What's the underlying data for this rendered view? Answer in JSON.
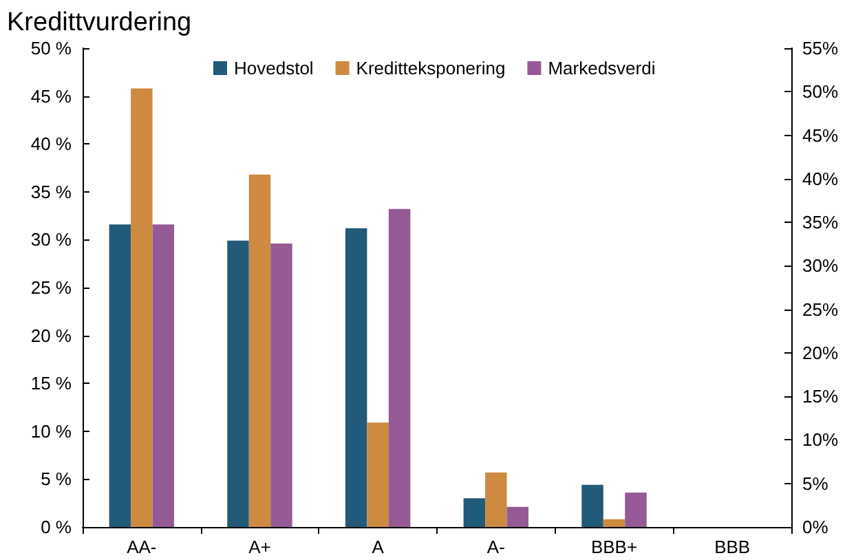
{
  "chart_data": {
    "type": "bar",
    "title": "Kredittvurdering",
    "categories": [
      "AA-",
      "A+",
      "A",
      "A-",
      "BBB+",
      "BBB"
    ],
    "series": [
      {
        "name": "Hovedstol",
        "color": "#225a79",
        "values": [
          31.6,
          29.9,
          31.2,
          3.0,
          4.4,
          0
        ]
      },
      {
        "name": "Kreditteksponering",
        "color": "#cd8a40",
        "values": [
          45.8,
          36.8,
          10.9,
          5.7,
          0.8,
          0
        ]
      },
      {
        "name": "Markedsverdi",
        "color": "#955a96",
        "values": [
          31.6,
          29.6,
          33.2,
          2.1,
          3.6,
          0
        ]
      }
    ],
    "ylim": [
      0,
      50
    ],
    "yticks": [
      {
        "value": 0,
        "label": "0 %"
      },
      {
        "value": 5,
        "label": "5 %"
      },
      {
        "value": 10,
        "label": "10 %"
      },
      {
        "value": 15,
        "label": "15 %"
      },
      {
        "value": 20,
        "label": "20 %"
      },
      {
        "value": 25,
        "label": "25 %"
      },
      {
        "value": 30,
        "label": "30 %"
      },
      {
        "value": 35,
        "label": "35 %"
      },
      {
        "value": 40,
        "label": "40 %"
      },
      {
        "value": 45,
        "label": "45 %"
      },
      {
        "value": 50,
        "label": "50 %"
      }
    ],
    "y2lim": [
      0,
      55
    ],
    "y2ticks": [
      {
        "value": 0,
        "label": "0%"
      },
      {
        "value": 5,
        "label": "5%"
      },
      {
        "value": 10,
        "label": "10%"
      },
      {
        "value": 15,
        "label": "15%"
      },
      {
        "value": 20,
        "label": "20%"
      },
      {
        "value": 25,
        "label": "25%"
      },
      {
        "value": 30,
        "label": "30%"
      },
      {
        "value": 35,
        "label": "35%"
      },
      {
        "value": 40,
        "label": "40%"
      },
      {
        "value": 45,
        "label": "45%"
      },
      {
        "value": 50,
        "label": "50%"
      },
      {
        "value": 55,
        "label": "55%"
      }
    ],
    "grid": false,
    "legend": "top"
  }
}
